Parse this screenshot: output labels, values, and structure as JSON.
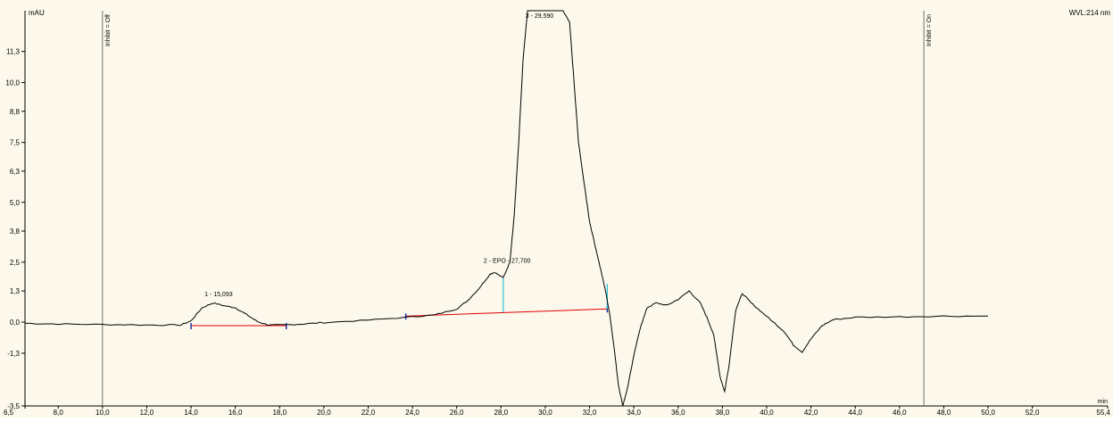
{
  "chart_data": {
    "type": "line",
    "title": "",
    "ylabel": "mAU",
    "xlabel": "min",
    "wavelength_label": "WVL:214 nm",
    "xlim": [
      6.5,
      55.4
    ],
    "ylim": [
      -3.5,
      13.0
    ],
    "x_ticks": [
      "6,5",
      "8,0",
      "10,0",
      "12,0",
      "14,0",
      "16,0",
      "18,0",
      "20,0",
      "22,0",
      "24,0",
      "26,0",
      "28,0",
      "30,0",
      "32,0",
      "34,0",
      "36,0",
      "38,0",
      "40,0",
      "42,0",
      "44,0",
      "46,0",
      "48,0",
      "50,0",
      "52,0",
      "55,4"
    ],
    "x_tick_values": [
      6.5,
      8,
      10,
      12,
      14,
      16,
      18,
      20,
      22,
      24,
      26,
      28,
      30,
      32,
      34,
      36,
      38,
      40,
      42,
      44,
      46,
      48,
      50,
      52,
      55.4
    ],
    "y_ticks": [
      "-3,5",
      "-1,3",
      "0,0",
      "1,3",
      "2,5",
      "3,8",
      "5,0",
      "6,3",
      "7,5",
      "8,8",
      "10,0",
      "11,3"
    ],
    "y_tick_values": [
      -3.5,
      -1.3,
      0.0,
      1.3,
      2.5,
      3.8,
      5.0,
      6.3,
      7.5,
      8.8,
      10.0,
      11.3
    ],
    "events": [
      {
        "x": 10.0,
        "label": "Inhibit = Off"
      },
      {
        "x": 47.1,
        "label": "Inhibit = On"
      }
    ],
    "peaks": [
      {
        "label": "1 - 15,093",
        "x": 15.09,
        "y": 0.78
      },
      {
        "label": "2 - EPO - 27,700",
        "x": 27.7,
        "y": 2.1
      },
      {
        "label": "3 - 29,590",
        "x": 29.59,
        "y": 13.0
      }
    ],
    "baselines": [
      {
        "x": [
          14.0,
          18.3
        ],
        "y": [
          -0.15,
          -0.15
        ]
      },
      {
        "x": [
          23.7,
          32.8
        ],
        "y": [
          0.25,
          0.55
        ]
      }
    ],
    "integration_marks": [
      {
        "x": 28.1,
        "y_top": 1.85,
        "y_bottom": 0.42
      },
      {
        "x": 32.8,
        "y_top": 1.6,
        "y_bottom": 0.55
      }
    ],
    "series": [
      {
        "x": [
          6.5,
          8.0,
          10.0,
          12.0,
          13.5,
          14.0,
          14.5,
          15.0,
          15.5,
          16.0,
          16.5,
          17.0,
          17.5,
          18.3,
          19.0,
          20.0,
          22.0,
          24.0,
          25.0,
          26.0,
          26.5,
          27.0,
          27.5,
          27.7,
          28.1,
          28.4,
          28.6,
          28.8,
          29.0,
          29.2,
          29.59,
          30.2,
          30.8,
          31.1,
          31.3,
          31.5,
          31.8,
          32.0,
          32.3,
          32.5,
          32.7,
          32.9,
          33.1,
          33.3,
          33.5,
          33.7,
          34.0,
          34.3,
          34.6,
          35.0,
          35.5,
          36.0,
          36.5,
          37.0,
          37.3,
          37.6,
          37.9,
          38.1,
          38.3,
          38.6,
          38.9,
          39.3,
          39.8,
          40.3,
          40.8,
          41.2,
          41.6,
          42.0,
          42.5,
          43.0,
          44.0,
          46.0,
          48.0,
          50.0
        ],
        "y": [
          -0.05,
          -0.08,
          -0.1,
          -0.12,
          -0.13,
          0.05,
          0.6,
          0.8,
          0.68,
          0.6,
          0.32,
          0.02,
          -0.12,
          -0.12,
          -0.08,
          -0.02,
          0.08,
          0.22,
          0.3,
          0.55,
          0.9,
          1.4,
          2.0,
          2.08,
          1.85,
          2.5,
          4.5,
          7.5,
          11.0,
          13.0,
          13.0,
          13.0,
          13.0,
          12.5,
          10.0,
          7.5,
          5.5,
          4.2,
          3.0,
          2.2,
          1.4,
          0.4,
          -1.0,
          -2.6,
          -3.5,
          -2.8,
          -1.4,
          -0.2,
          0.6,
          0.8,
          0.7,
          0.95,
          1.3,
          0.8,
          0.2,
          -0.5,
          -2.3,
          -2.9,
          -1.8,
          0.5,
          1.2,
          0.8,
          0.4,
          0.0,
          -0.4,
          -0.95,
          -1.25,
          -0.7,
          -0.15,
          0.1,
          0.2,
          0.22,
          0.25,
          0.25
        ]
      }
    ],
    "colors": {
      "plot_background": "#fdf8ec",
      "trace": "#000000",
      "baseline": "#e00000",
      "integration": "#2ec4e0",
      "delimiter": "#1a2fa8",
      "event_line": "#707070"
    }
  }
}
